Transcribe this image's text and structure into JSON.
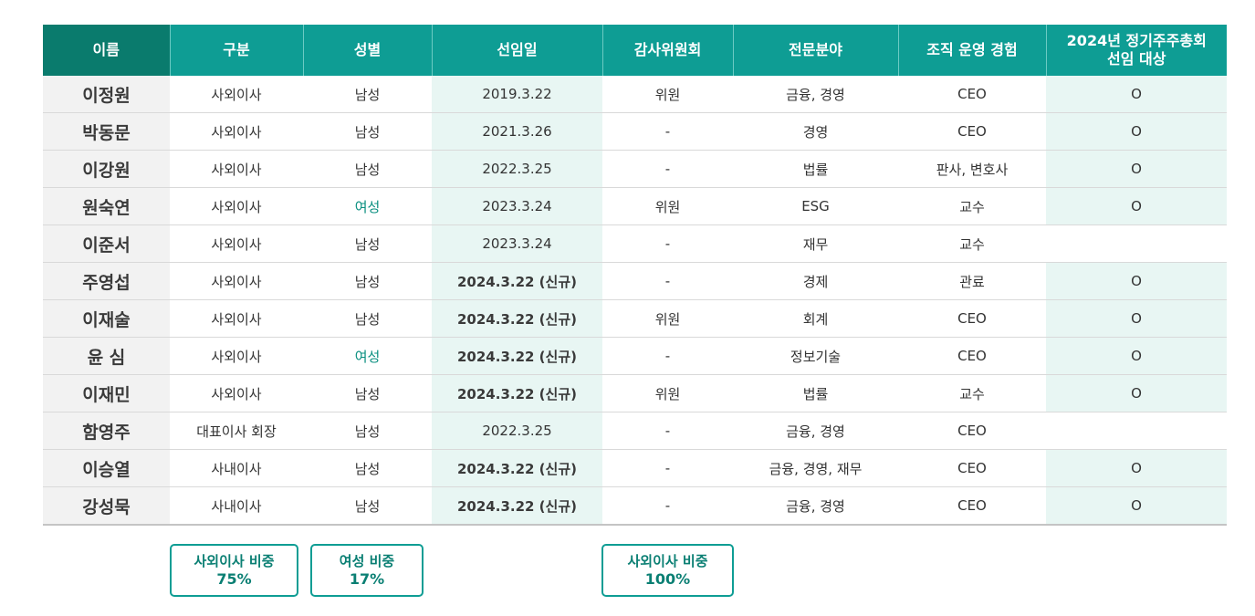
{
  "headers": {
    "name": "이름",
    "type": "구분",
    "gender": "성별",
    "appointed": "선임일",
    "audit": "감사위원회",
    "expertise": "전문분야",
    "experience": "조직 운영 경험",
    "target_line1": "2024년 정기주주총회",
    "target_line2": "선임 대상"
  },
  "rows": [
    {
      "name": "이정원",
      "type": "사외이사",
      "gender": "남성",
      "appointed": "2019.3.22",
      "audit": "위원",
      "expertise": "금융, 경영",
      "experience": "CEO",
      "target": "O"
    },
    {
      "name": "박동문",
      "type": "사외이사",
      "gender": "남성",
      "appointed": "2021.3.26",
      "audit": "-",
      "expertise": "경영",
      "experience": "CEO",
      "target": "O"
    },
    {
      "name": "이강원",
      "type": "사외이사",
      "gender": "남성",
      "appointed": "2022.3.25",
      "audit": "-",
      "expertise": "법률",
      "experience": "판사, 변호사",
      "target": "O"
    },
    {
      "name": "원숙연",
      "type": "사외이사",
      "gender": "여성",
      "appointed": "2023.3.24",
      "audit": "위원",
      "expertise": "ESG",
      "experience": "교수",
      "target": "O"
    },
    {
      "name": "이준서",
      "type": "사외이사",
      "gender": "남성",
      "appointed": "2023.3.24",
      "audit": "-",
      "expertise": "재무",
      "experience": "교수",
      "target": ""
    },
    {
      "name": "주영섭",
      "type": "사외이사",
      "gender": "남성",
      "appointed": "2024.3.22 (신규)",
      "audit": "-",
      "expertise": "경제",
      "experience": "관료",
      "target": "O"
    },
    {
      "name": "이재술",
      "type": "사외이사",
      "gender": "남성",
      "appointed": "2024.3.22 (신규)",
      "audit": "위원",
      "expertise": "회계",
      "experience": "CEO",
      "target": "O"
    },
    {
      "name": "윤 심",
      "type": "사외이사",
      "gender": "여성",
      "appointed": "2024.3.22 (신규)",
      "audit": "-",
      "expertise": "정보기술",
      "experience": "CEO",
      "target": "O"
    },
    {
      "name": "이재민",
      "type": "사외이사",
      "gender": "남성",
      "appointed": "2024.3.22 (신규)",
      "audit": "위원",
      "expertise": "법률",
      "experience": "교수",
      "target": "O"
    },
    {
      "name": "함영주",
      "type": "대표이사 회장",
      "gender": "남성",
      "appointed": "2022.3.25",
      "audit": "-",
      "expertise": "금융, 경영",
      "experience": "CEO",
      "target": ""
    },
    {
      "name": "이승열",
      "type": "사내이사",
      "gender": "남성",
      "appointed": "2024.3.22 (신규)",
      "audit": "-",
      "expertise": "금융, 경영, 재무",
      "experience": "CEO",
      "target": "O"
    },
    {
      "name": "강성묵",
      "type": "사내이사",
      "gender": "남성",
      "appointed": "2024.3.22 (신규)",
      "audit": "-",
      "expertise": "금융, 경영",
      "experience": "CEO",
      "target": "O"
    }
  ],
  "stats": {
    "outside_ratio": {
      "label": "사외이사 비중",
      "value": "75%"
    },
    "female_ratio": {
      "label": "여성 비중",
      "value": "17%"
    },
    "audit_outside_ratio": {
      "label": "사외이사 비중",
      "value": "100%"
    }
  },
  "colors": {
    "header_teal": "#0e9d94",
    "header_dark": "#0a7b6d",
    "highlight_bg": "#e8f6f3",
    "name_bg": "#f2f2f2",
    "female_text": "#0a8f80"
  }
}
